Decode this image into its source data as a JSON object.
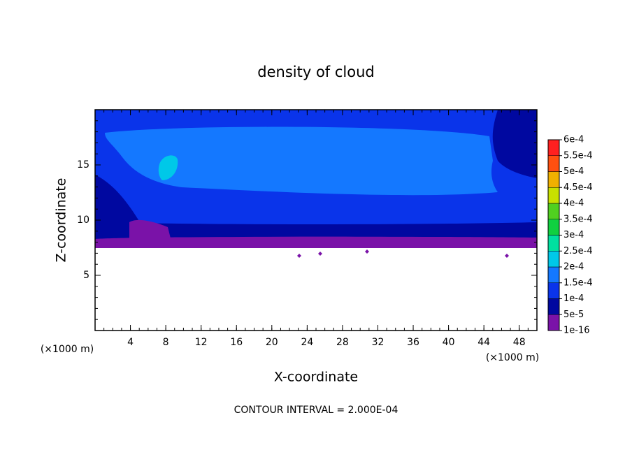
{
  "chart_data": {
    "type": "contour",
    "title": "density of cloud",
    "x_label": "X-coordinate",
    "y_label": "Z-coordinate",
    "x_unit": "(×1000 m)",
    "y_unit": "(×1000 m)",
    "footer": "CONTOUR INTERVAL = 2.000E-04",
    "xlim": [
      0,
      50
    ],
    "xticks": [
      4,
      8,
      12,
      16,
      20,
      24,
      28,
      32,
      36,
      40,
      44,
      48
    ],
    "ylim": [
      0,
      20
    ],
    "yticks": [
      5,
      10,
      15
    ],
    "levels": [
      {
        "value": 1e-16,
        "label": "1e-16"
      },
      {
        "value": 5e-05,
        "label": "5e-5"
      },
      {
        "value": 0.0001,
        "label": "1e-4"
      },
      {
        "value": 0.00015,
        "label": "1.5e-4"
      },
      {
        "value": 0.0002,
        "label": "2e-4"
      },
      {
        "value": 0.00025,
        "label": "2.5e-4"
      },
      {
        "value": 0.0003,
        "label": "3e-4"
      },
      {
        "value": 0.00035,
        "label": "3.5e-4"
      },
      {
        "value": 0.0004,
        "label": "4e-4"
      },
      {
        "value": 0.00045,
        "label": "4.5e-4"
      },
      {
        "value": 0.0005,
        "label": "5e-4"
      },
      {
        "value": 0.00055,
        "label": "5.5e-4"
      },
      {
        "value": 0.0006,
        "label": "6e-4"
      }
    ],
    "colors": [
      "#7a12a8",
      "#0008a0",
      "#0a34ea",
      "#1478ff",
      "#00c8e8",
      "#00e0a0",
      "#10d040",
      "#50d020",
      "#c8e000",
      "#f0b000",
      "#ff5010",
      "#ff2020",
      "#ff8c8c"
    ]
  }
}
